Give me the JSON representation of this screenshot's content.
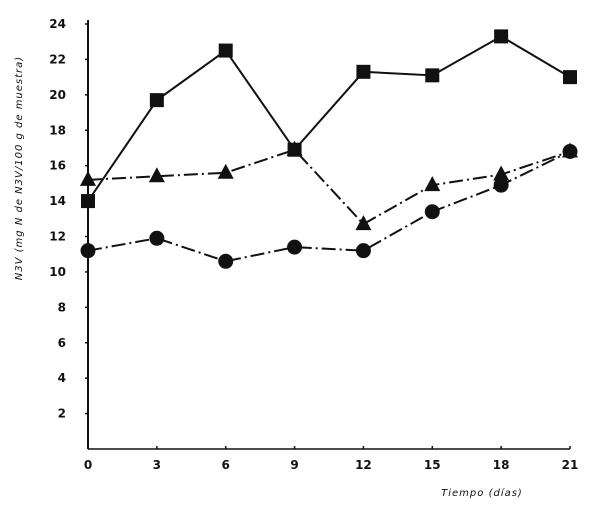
{
  "chart_data": {
    "type": "line",
    "title": "",
    "xlabel": "Tiempo (días)",
    "ylabel": "N3V (mg N de N3V/100 g de muestra)",
    "x": [
      0,
      3,
      6,
      9,
      12,
      15,
      18,
      21
    ],
    "xticks": [
      "0",
      "3",
      "6",
      "9",
      "12",
      "15",
      "18",
      "21"
    ],
    "yticks": [
      "2",
      "4",
      "6",
      "8",
      "10",
      "12",
      "14",
      "16",
      "18",
      "20",
      "22",
      "24"
    ],
    "xlim": [
      0,
      21
    ],
    "ylim": [
      0,
      24
    ],
    "grid": false,
    "legend": "none",
    "series": [
      {
        "name": "square-markers",
        "marker": "square",
        "line": "solid",
        "values": [
          14.0,
          19.7,
          22.5,
          16.9,
          21.3,
          21.1,
          23.3,
          21.0
        ]
      },
      {
        "name": "triangle-markers",
        "marker": "triangle",
        "line": "dash-dot",
        "values": [
          15.2,
          15.4,
          15.6,
          16.9,
          12.7,
          14.9,
          15.5,
          16.8
        ]
      },
      {
        "name": "circle-markers",
        "marker": "circle",
        "line": "dash-dot",
        "values": [
          11.2,
          11.9,
          10.6,
          11.4,
          11.2,
          13.4,
          14.9,
          16.8
        ]
      }
    ]
  }
}
